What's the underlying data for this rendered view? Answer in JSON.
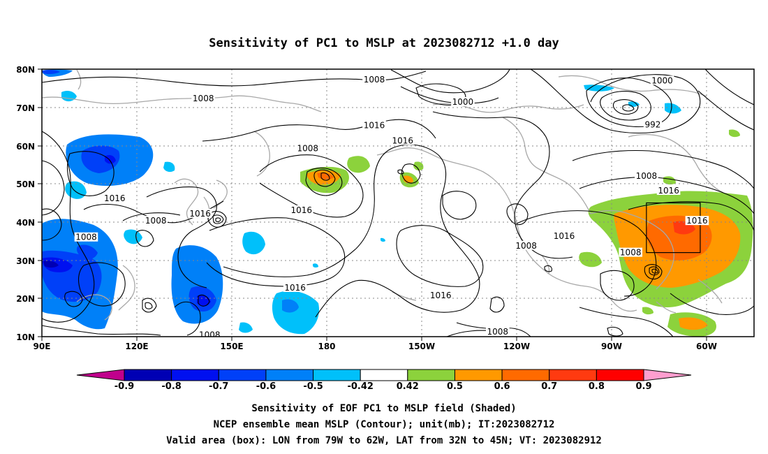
{
  "title": "Sensitivity of PC1 to MSLP at 2023082712 +1.0 day",
  "map": {
    "lon_labels": [
      "90E",
      "120E",
      "150E",
      "180",
      "150W",
      "120W",
      "90W",
      "60W"
    ],
    "lat_labels": [
      "80N",
      "70N",
      "60N",
      "50N",
      "40N",
      "30N",
      "20N",
      "10N"
    ],
    "contour_labels": [
      {
        "text": "1008",
        "lon": 141,
        "lat": 72.3
      },
      {
        "text": "1008",
        "lon": 195,
        "lat": 77.3
      },
      {
        "text": "1000",
        "lon": 223,
        "lat": 71.4
      },
      {
        "text": "1000",
        "lon": 286,
        "lat": 77.0
      },
      {
        "text": "992",
        "lon": 283,
        "lat": 65.5
      },
      {
        "text": "1016",
        "lon": 195,
        "lat": 65.3
      },
      {
        "text": "1016",
        "lon": 204,
        "lat": 61.3
      },
      {
        "text": "1008",
        "lon": 174,
        "lat": 59.3
      },
      {
        "text": "1016",
        "lon": 113,
        "lat": 46.2
      },
      {
        "text": "1016",
        "lon": 140,
        "lat": 42.2
      },
      {
        "text": "1008",
        "lon": 126,
        "lat": 40.3
      },
      {
        "text": "1008",
        "lon": 104,
        "lat": 36.0
      },
      {
        "text": "1016",
        "lon": 172,
        "lat": 43.1
      },
      {
        "text": "1016",
        "lon": 255,
        "lat": 36.3
      },
      {
        "text": "1008",
        "lon": 243,
        "lat": 33.8
      },
      {
        "text": "1008",
        "lon": 276,
        "lat": 32.0
      },
      {
        "text": "1008",
        "lon": 281,
        "lat": 52.0
      },
      {
        "text": "1016",
        "lon": 288,
        "lat": 48.2
      },
      {
        "text": "1016",
        "lon": 297,
        "lat": 40.3
      },
      {
        "text": "1016",
        "lon": 170,
        "lat": 22.8
      },
      {
        "text": "1016",
        "lon": 216,
        "lat": 20.8
      },
      {
        "text": "1008",
        "lon": 143,
        "lat": 10.5
      },
      {
        "text": "1008",
        "lon": 234,
        "lat": 11.3
      }
    ],
    "valid_box": {
      "lon_w": -79,
      "lon_e": -62,
      "lat_s": 32,
      "lat_n": 45
    }
  },
  "colorbar": {
    "labels": [
      "-0.9",
      "-0.8",
      "-0.7",
      "-0.6",
      "-0.5",
      "-0.42",
      "0.42",
      "0.5",
      "0.6",
      "0.7",
      "0.8",
      "0.9"
    ],
    "colors": [
      "#0000b4",
      "#0010f0",
      "#0040f8",
      "#0080f8",
      "#00c0fa",
      "#ffffff",
      "#8cd23c",
      "#ff9900",
      "#ff6a00",
      "#ff3a10",
      "#ff0000"
    ],
    "low_color": "#c0008c",
    "high_color": "#ff9ecf"
  },
  "caption": {
    "line1": "Sensitivity of EOF PC1 to MSLP field (Shaded)",
    "line2": "NCEP ensemble mean MSLP (Contour); unit(mb); IT:2023082712",
    "line3": "Valid area (box): LON from 79W to 62W, LAT from 32N to 45N; VT: 2023082912"
  }
}
